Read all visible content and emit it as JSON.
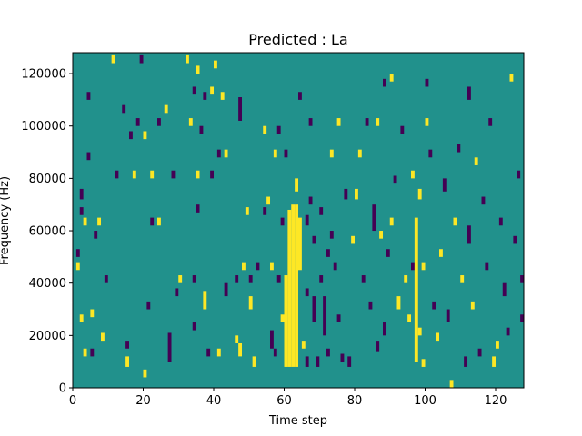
{
  "chart_data": {
    "type": "heatmap",
    "title": "Predicted : La",
    "xlabel": "Time step",
    "ylabel": "Frequency (Hz)",
    "xlim": [
      0,
      128
    ],
    "ylim": [
      0,
      128000
    ],
    "x_ticks": [
      0,
      20,
      40,
      60,
      80,
      100,
      120
    ],
    "y_ticks": [
      0,
      20000,
      40000,
      60000,
      80000,
      100000,
      120000
    ],
    "x_tick_labels": [
      "0",
      "20",
      "40",
      "60",
      "80",
      "100",
      "120"
    ],
    "y_tick_labels": [
      "0",
      "20000",
      "40000",
      "60000",
      "80000",
      "100000",
      "120000"
    ],
    "grid": false,
    "colormap": "viridis",
    "colors": {
      "background": "#21918c",
      "high": "#fde725",
      "low": "#440154"
    },
    "cells": [
      {
        "x": 1,
        "y1": 50000,
        "y2": 53000,
        "v": -1
      },
      {
        "x": 2,
        "y1": 72000,
        "y2": 76000,
        "v": -1
      },
      {
        "x": 2,
        "y1": 66000,
        "y2": 69000,
        "v": -1
      },
      {
        "x": 3,
        "y1": 62000,
        "y2": 65000,
        "v": 1
      },
      {
        "x": 4,
        "y1": 87000,
        "y2": 90000,
        "v": -1
      },
      {
        "x": 4,
        "y1": 110000,
        "y2": 113000,
        "v": -1
      },
      {
        "x": 1,
        "y1": 45000,
        "y2": 48000,
        "v": 1
      },
      {
        "x": 2,
        "y1": 25000,
        "y2": 28000,
        "v": 1
      },
      {
        "x": 3,
        "y1": 12000,
        "y2": 15000,
        "v": 1
      },
      {
        "x": 5,
        "y1": 27000,
        "y2": 30000,
        "v": 1
      },
      {
        "x": 5,
        "y1": 12000,
        "y2": 15000,
        "v": -1
      },
      {
        "x": 6,
        "y1": 57000,
        "y2": 60000,
        "v": -1
      },
      {
        "x": 7,
        "y1": 62000,
        "y2": 65000,
        "v": 1
      },
      {
        "x": 8,
        "y1": 18000,
        "y2": 21000,
        "v": 1
      },
      {
        "x": 9,
        "y1": 40000,
        "y2": 43000,
        "v": -1
      },
      {
        "x": 11,
        "y1": 124000,
        "y2": 127000,
        "v": 1
      },
      {
        "x": 12,
        "y1": 80000,
        "y2": 83000,
        "v": -1
      },
      {
        "x": 14,
        "y1": 105000,
        "y2": 108000,
        "v": -1
      },
      {
        "x": 15,
        "y1": 8000,
        "y2": 12000,
        "v": 1
      },
      {
        "x": 15,
        "y1": 15000,
        "y2": 18000,
        "v": -1
      },
      {
        "x": 16,
        "y1": 95000,
        "y2": 98000,
        "v": -1
      },
      {
        "x": 17,
        "y1": 80000,
        "y2": 83000,
        "v": 1
      },
      {
        "x": 18,
        "y1": 100000,
        "y2": 103000,
        "v": -1
      },
      {
        "x": 19,
        "y1": 124000,
        "y2": 127000,
        "v": -1
      },
      {
        "x": 20,
        "y1": 95000,
        "y2": 98000,
        "v": 1
      },
      {
        "x": 20,
        "y1": 4000,
        "y2": 7000,
        "v": 1
      },
      {
        "x": 21,
        "y1": 30000,
        "y2": 33000,
        "v": -1
      },
      {
        "x": 22,
        "y1": 62000,
        "y2": 65000,
        "v": -1
      },
      {
        "x": 22,
        "y1": 80000,
        "y2": 83000,
        "v": 1
      },
      {
        "x": 24,
        "y1": 62000,
        "y2": 65000,
        "v": 1
      },
      {
        "x": 24,
        "y1": 100000,
        "y2": 103000,
        "v": -1
      },
      {
        "x": 26,
        "y1": 105000,
        "y2": 108000,
        "v": 1
      },
      {
        "x": 27,
        "y1": 10000,
        "y2": 21000,
        "v": -1
      },
      {
        "x": 28,
        "y1": 80000,
        "y2": 83000,
        "v": -1
      },
      {
        "x": 29,
        "y1": 35000,
        "y2": 38000,
        "v": -1
      },
      {
        "x": 30,
        "y1": 40000,
        "y2": 43000,
        "v": 1
      },
      {
        "x": 32,
        "y1": 124000,
        "y2": 127000,
        "v": 1
      },
      {
        "x": 33,
        "y1": 100000,
        "y2": 103000,
        "v": 1
      },
      {
        "x": 34,
        "y1": 22000,
        "y2": 25000,
        "v": -1
      },
      {
        "x": 34,
        "y1": 40000,
        "y2": 43000,
        "v": -1
      },
      {
        "x": 34,
        "y1": 112000,
        "y2": 115000,
        "v": -1
      },
      {
        "x": 35,
        "y1": 67000,
        "y2": 70000,
        "v": -1
      },
      {
        "x": 35,
        "y1": 80000,
        "y2": 83000,
        "v": 1
      },
      {
        "x": 35,
        "y1": 120000,
        "y2": 123000,
        "v": 1
      },
      {
        "x": 36,
        "y1": 97000,
        "y2": 100000,
        "v": -1
      },
      {
        "x": 37,
        "y1": 30000,
        "y2": 37000,
        "v": 1
      },
      {
        "x": 37,
        "y1": 110000,
        "y2": 113000,
        "v": -1
      },
      {
        "x": 38,
        "y1": 12000,
        "y2": 15000,
        "v": -1
      },
      {
        "x": 39,
        "y1": 80000,
        "y2": 83000,
        "v": -1
      },
      {
        "x": 39,
        "y1": 112000,
        "y2": 115000,
        "v": 1
      },
      {
        "x": 40,
        "y1": 122000,
        "y2": 125000,
        "v": 1
      },
      {
        "x": 41,
        "y1": 12000,
        "y2": 15000,
        "v": 1
      },
      {
        "x": 41,
        "y1": 88000,
        "y2": 91000,
        "v": -1
      },
      {
        "x": 42,
        "y1": 110000,
        "y2": 113000,
        "v": 1
      },
      {
        "x": 43,
        "y1": 35000,
        "y2": 40000,
        "v": -1
      },
      {
        "x": 43,
        "y1": 88000,
        "y2": 91000,
        "v": 1
      },
      {
        "x": 46,
        "y1": 17000,
        "y2": 20000,
        "v": 1
      },
      {
        "x": 46,
        "y1": 40000,
        "y2": 43000,
        "v": -1
      },
      {
        "x": 47,
        "y1": 12000,
        "y2": 17000,
        "v": 1
      },
      {
        "x": 47,
        "y1": 102000,
        "y2": 111000,
        "v": -1
      },
      {
        "x": 48,
        "y1": 45000,
        "y2": 48000,
        "v": 1
      },
      {
        "x": 49,
        "y1": 66000,
        "y2": 69000,
        "v": 1
      },
      {
        "x": 50,
        "y1": 30000,
        "y2": 35000,
        "v": 1
      },
      {
        "x": 50,
        "y1": 40000,
        "y2": 43000,
        "v": -1
      },
      {
        "x": 51,
        "y1": 8000,
        "y2": 12000,
        "v": 1
      },
      {
        "x": 52,
        "y1": 45000,
        "y2": 48000,
        "v": -1
      },
      {
        "x": 54,
        "y1": 66000,
        "y2": 69000,
        "v": -1
      },
      {
        "x": 54,
        "y1": 97000,
        "y2": 100000,
        "v": 1
      },
      {
        "x": 55,
        "y1": 70000,
        "y2": 73000,
        "v": 1
      },
      {
        "x": 56,
        "y1": 15000,
        "y2": 22000,
        "v": -1
      },
      {
        "x": 56,
        "y1": 45000,
        "y2": 48000,
        "v": 1
      },
      {
        "x": 57,
        "y1": 12000,
        "y2": 15000,
        "v": -1
      },
      {
        "x": 57,
        "y1": 88000,
        "y2": 91000,
        "v": 1
      },
      {
        "x": 58,
        "y1": 40000,
        "y2": 43000,
        "v": -1
      },
      {
        "x": 58,
        "y1": 97000,
        "y2": 100000,
        "v": -1
      },
      {
        "x": 59,
        "y1": 62000,
        "y2": 65000,
        "v": -1
      },
      {
        "x": 59,
        "y1": 25000,
        "y2": 28000,
        "v": 1
      },
      {
        "x": 60,
        "y1": 8000,
        "y2": 43000,
        "v": 1
      },
      {
        "x": 60,
        "y1": 88000,
        "y2": 91000,
        "v": -1
      },
      {
        "x": 61,
        "y1": 8000,
        "y2": 68000,
        "v": 1
      },
      {
        "x": 62,
        "y1": 8000,
        "y2": 70000,
        "v": 1
      },
      {
        "x": 63,
        "y1": 8000,
        "y2": 70000,
        "v": 1
      },
      {
        "x": 63,
        "y1": 75000,
        "y2": 80000,
        "v": 1
      },
      {
        "x": 64,
        "y1": 45000,
        "y2": 65000,
        "v": 1
      },
      {
        "x": 64,
        "y1": 110000,
        "y2": 113000,
        "v": -1
      },
      {
        "x": 65,
        "y1": 15000,
        "y2": 18000,
        "v": 1
      },
      {
        "x": 66,
        "y1": 8000,
        "y2": 12000,
        "v": -1
      },
      {
        "x": 66,
        "y1": 35000,
        "y2": 38000,
        "v": -1
      },
      {
        "x": 66,
        "y1": 62000,
        "y2": 66000,
        "v": -1
      },
      {
        "x": 67,
        "y1": 70000,
        "y2": 73000,
        "v": -1
      },
      {
        "x": 67,
        "y1": 100000,
        "y2": 103000,
        "v": -1
      },
      {
        "x": 68,
        "y1": 55000,
        "y2": 58000,
        "v": -1
      },
      {
        "x": 68,
        "y1": 25000,
        "y2": 35000,
        "v": -1
      },
      {
        "x": 69,
        "y1": 8000,
        "y2": 12000,
        "v": -1
      },
      {
        "x": 70,
        "y1": 40000,
        "y2": 43000,
        "v": -1
      },
      {
        "x": 70,
        "y1": 66000,
        "y2": 69000,
        "v": -1
      },
      {
        "x": 71,
        "y1": 20000,
        "y2": 35000,
        "v": -1
      },
      {
        "x": 72,
        "y1": 12000,
        "y2": 15000,
        "v": -1
      },
      {
        "x": 72,
        "y1": 50000,
        "y2": 53000,
        "v": -1
      },
      {
        "x": 73,
        "y1": 57000,
        "y2": 60000,
        "v": -1
      },
      {
        "x": 73,
        "y1": 88000,
        "y2": 91000,
        "v": 1
      },
      {
        "x": 74,
        "y1": 45000,
        "y2": 48000,
        "v": -1
      },
      {
        "x": 75,
        "y1": 25000,
        "y2": 28000,
        "v": -1
      },
      {
        "x": 75,
        "y1": 100000,
        "y2": 103000,
        "v": 1
      },
      {
        "x": 76,
        "y1": 10000,
        "y2": 13000,
        "v": -1
      },
      {
        "x": 77,
        "y1": 72000,
        "y2": 76000,
        "v": -1
      },
      {
        "x": 78,
        "y1": 8000,
        "y2": 12000,
        "v": -1
      },
      {
        "x": 79,
        "y1": 55000,
        "y2": 58000,
        "v": 1
      },
      {
        "x": 80,
        "y1": 72000,
        "y2": 76000,
        "v": 1
      },
      {
        "x": 81,
        "y1": 88000,
        "y2": 91000,
        "v": 1
      },
      {
        "x": 82,
        "y1": 40000,
        "y2": 43000,
        "v": -1
      },
      {
        "x": 83,
        "y1": 100000,
        "y2": 103000,
        "v": -1
      },
      {
        "x": 84,
        "y1": 30000,
        "y2": 33000,
        "v": -1
      },
      {
        "x": 85,
        "y1": 60000,
        "y2": 70000,
        "v": -1
      },
      {
        "x": 86,
        "y1": 14000,
        "y2": 18000,
        "v": -1
      },
      {
        "x": 86,
        "y1": 100000,
        "y2": 103000,
        "v": 1
      },
      {
        "x": 87,
        "y1": 57000,
        "y2": 60000,
        "v": 1
      },
      {
        "x": 88,
        "y1": 20000,
        "y2": 25000,
        "v": -1
      },
      {
        "x": 88,
        "y1": 115000,
        "y2": 118000,
        "v": -1
      },
      {
        "x": 89,
        "y1": 50000,
        "y2": 53000,
        "v": -1
      },
      {
        "x": 90,
        "y1": 62000,
        "y2": 65000,
        "v": 1
      },
      {
        "x": 90,
        "y1": 117000,
        "y2": 120000,
        "v": 1
      },
      {
        "x": 91,
        "y1": 78000,
        "y2": 81000,
        "v": -1
      },
      {
        "x": 92,
        "y1": 30000,
        "y2": 35000,
        "v": 1
      },
      {
        "x": 93,
        "y1": 97000,
        "y2": 100000,
        "v": -1
      },
      {
        "x": 94,
        "y1": 40000,
        "y2": 43000,
        "v": 1
      },
      {
        "x": 95,
        "y1": 25000,
        "y2": 28000,
        "v": 1
      },
      {
        "x": 96,
        "y1": 45000,
        "y2": 48000,
        "v": -1
      },
      {
        "x": 96,
        "y1": 80000,
        "y2": 83000,
        "v": 1
      },
      {
        "x": 97,
        "y1": 10000,
        "y2": 65000,
        "v": 1
      },
      {
        "x": 98,
        "y1": 20000,
        "y2": 23000,
        "v": 1
      },
      {
        "x": 98,
        "y1": 72000,
        "y2": 76000,
        "v": 1
      },
      {
        "x": 99,
        "y1": 45000,
        "y2": 48000,
        "v": 1
      },
      {
        "x": 99,
        "y1": 8000,
        "y2": 11000,
        "v": 1
      },
      {
        "x": 100,
        "y1": 115000,
        "y2": 118000,
        "v": -1
      },
      {
        "x": 100,
        "y1": 100000,
        "y2": 103000,
        "v": 1
      },
      {
        "x": 101,
        "y1": 88000,
        "y2": 91000,
        "v": -1
      },
      {
        "x": 102,
        "y1": 30000,
        "y2": 33000,
        "v": -1
      },
      {
        "x": 103,
        "y1": 18000,
        "y2": 21000,
        "v": 1
      },
      {
        "x": 104,
        "y1": 50000,
        "y2": 53000,
        "v": 1
      },
      {
        "x": 105,
        "y1": 75000,
        "y2": 80000,
        "v": -1
      },
      {
        "x": 106,
        "y1": 25000,
        "y2": 30000,
        "v": -1
      },
      {
        "x": 107,
        "y1": 0,
        "y2": 3000,
        "v": 1
      },
      {
        "x": 108,
        "y1": 62000,
        "y2": 65000,
        "v": 1
      },
      {
        "x": 109,
        "y1": 90000,
        "y2": 93000,
        "v": -1
      },
      {
        "x": 110,
        "y1": 40000,
        "y2": 43000,
        "v": 1
      },
      {
        "x": 111,
        "y1": 8000,
        "y2": 12000,
        "v": -1
      },
      {
        "x": 112,
        "y1": 110000,
        "y2": 115000,
        "v": -1
      },
      {
        "x": 112,
        "y1": 55000,
        "y2": 62000,
        "v": -1
      },
      {
        "x": 113,
        "y1": 30000,
        "y2": 33000,
        "v": 1
      },
      {
        "x": 114,
        "y1": 85000,
        "y2": 88000,
        "v": 1
      },
      {
        "x": 115,
        "y1": 12000,
        "y2": 15000,
        "v": -1
      },
      {
        "x": 116,
        "y1": 70000,
        "y2": 73000,
        "v": -1
      },
      {
        "x": 117,
        "y1": 45000,
        "y2": 48000,
        "v": -1
      },
      {
        "x": 118,
        "y1": 100000,
        "y2": 103000,
        "v": -1
      },
      {
        "x": 119,
        "y1": 8000,
        "y2": 12000,
        "v": 1
      },
      {
        "x": 120,
        "y1": 15000,
        "y2": 18000,
        "v": 1
      },
      {
        "x": 121,
        "y1": 62000,
        "y2": 65000,
        "v": -1
      },
      {
        "x": 122,
        "y1": 35000,
        "y2": 40000,
        "v": -1
      },
      {
        "x": 123,
        "y1": 20000,
        "y2": 23000,
        "v": -1
      },
      {
        "x": 124,
        "y1": 117000,
        "y2": 120000,
        "v": 1
      },
      {
        "x": 125,
        "y1": 55000,
        "y2": 58000,
        "v": -1
      },
      {
        "x": 126,
        "y1": 80000,
        "y2": 83000,
        "v": -1
      },
      {
        "x": 127,
        "y1": 25000,
        "y2": 28000,
        "v": -1
      },
      {
        "x": 127,
        "y1": 40000,
        "y2": 43000,
        "v": -1
      }
    ]
  }
}
